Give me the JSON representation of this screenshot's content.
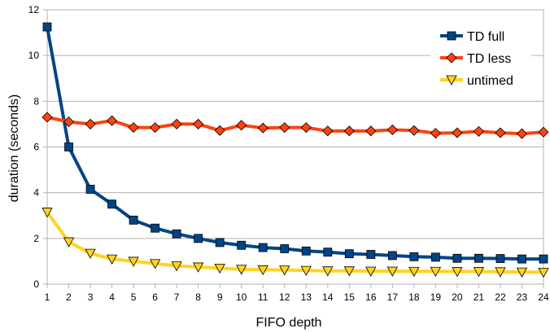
{
  "chart_data": {
    "type": "line",
    "title": "",
    "xlabel": "FIFO depth",
    "ylabel": "duration (seconds)",
    "x": [
      1,
      2,
      3,
      4,
      5,
      6,
      7,
      8,
      9,
      10,
      11,
      12,
      13,
      14,
      15,
      16,
      17,
      18,
      19,
      20,
      21,
      22,
      23,
      24
    ],
    "xlim": [
      1,
      24
    ],
    "ylim": [
      0,
      12
    ],
    "yticks": [
      0,
      2,
      4,
      6,
      8,
      10,
      12
    ],
    "grid": "horizontal",
    "legend_position": "top-right",
    "series": [
      {
        "name": "TD full",
        "color": "#004586",
        "marker": "square",
        "values": [
          11.25,
          6.0,
          4.15,
          3.5,
          2.8,
          2.45,
          2.2,
          2.0,
          1.82,
          1.7,
          1.6,
          1.55,
          1.45,
          1.4,
          1.33,
          1.3,
          1.25,
          1.2,
          1.18,
          1.13,
          1.13,
          1.12,
          1.1,
          1.1
        ]
      },
      {
        "name": "TD less",
        "color": "#ff420e",
        "marker": "diamond",
        "values": [
          7.3,
          7.1,
          7.0,
          7.15,
          6.85,
          6.85,
          7.0,
          7.0,
          6.72,
          6.95,
          6.83,
          6.85,
          6.85,
          6.7,
          6.7,
          6.7,
          6.75,
          6.72,
          6.6,
          6.62,
          6.68,
          6.62,
          6.58,
          6.65
        ]
      },
      {
        "name": "untimed",
        "color": "#ffd320",
        "marker": "triangle-down",
        "values": [
          3.15,
          1.85,
          1.35,
          1.1,
          1.0,
          0.9,
          0.8,
          0.75,
          0.7,
          0.65,
          0.63,
          0.62,
          0.6,
          0.58,
          0.58,
          0.57,
          0.57,
          0.56,
          0.56,
          0.55,
          0.55,
          0.54,
          0.53,
          0.52
        ]
      }
    ]
  }
}
